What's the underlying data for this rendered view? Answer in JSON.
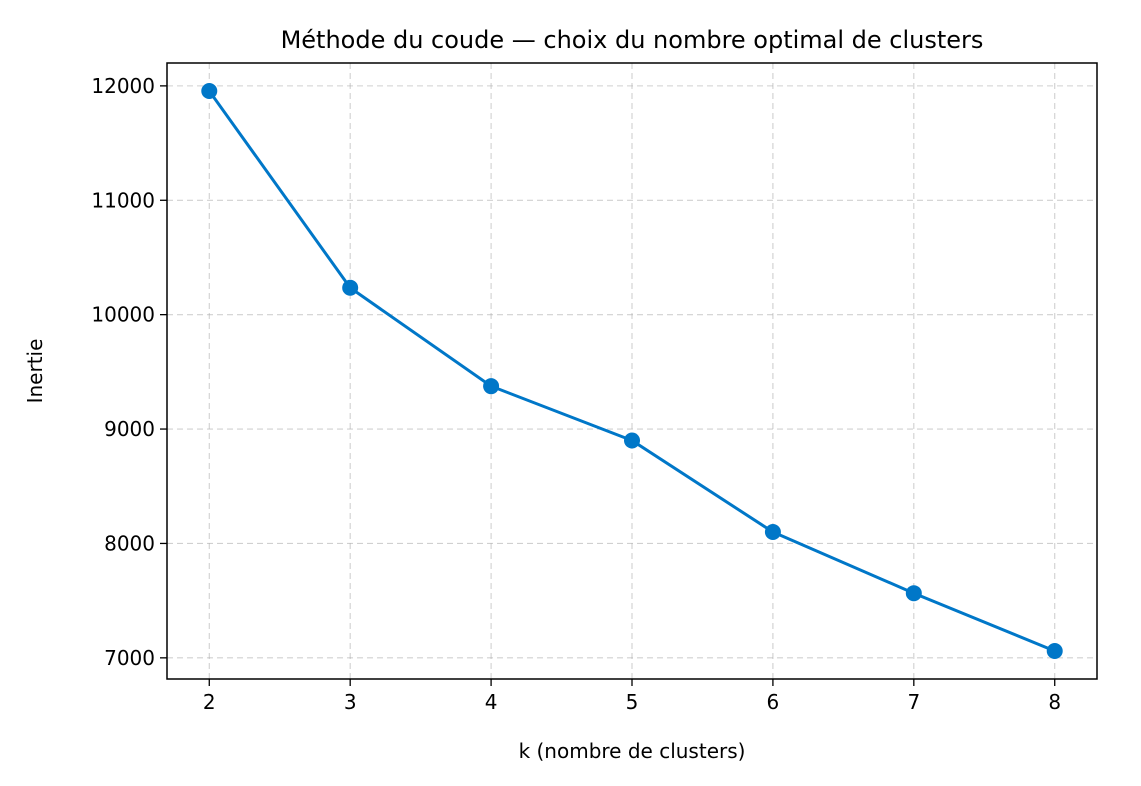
{
  "chart_data": {
    "type": "line",
    "title": "Méthode du coude — choix du nombre optimal de clusters",
    "xlabel": "k (nombre de clusters)",
    "ylabel": "Inertie",
    "x": [
      2,
      3,
      4,
      5,
      6,
      7,
      8
    ],
    "series": [
      {
        "values": [
          11955,
          10235,
          9375,
          8900,
          8100,
          7565,
          7060
        ],
        "color": "#0077c8",
        "marker": "circle"
      }
    ],
    "xticks": [
      2,
      3,
      4,
      5,
      6,
      7,
      8
    ],
    "yticks": [
      7000,
      8000,
      9000,
      10000,
      11000,
      12000
    ],
    "xlim": [
      1.7,
      8.3
    ],
    "ylim": [
      6815,
      12200
    ],
    "grid": true,
    "grid_style": "dashed",
    "legend": false
  }
}
